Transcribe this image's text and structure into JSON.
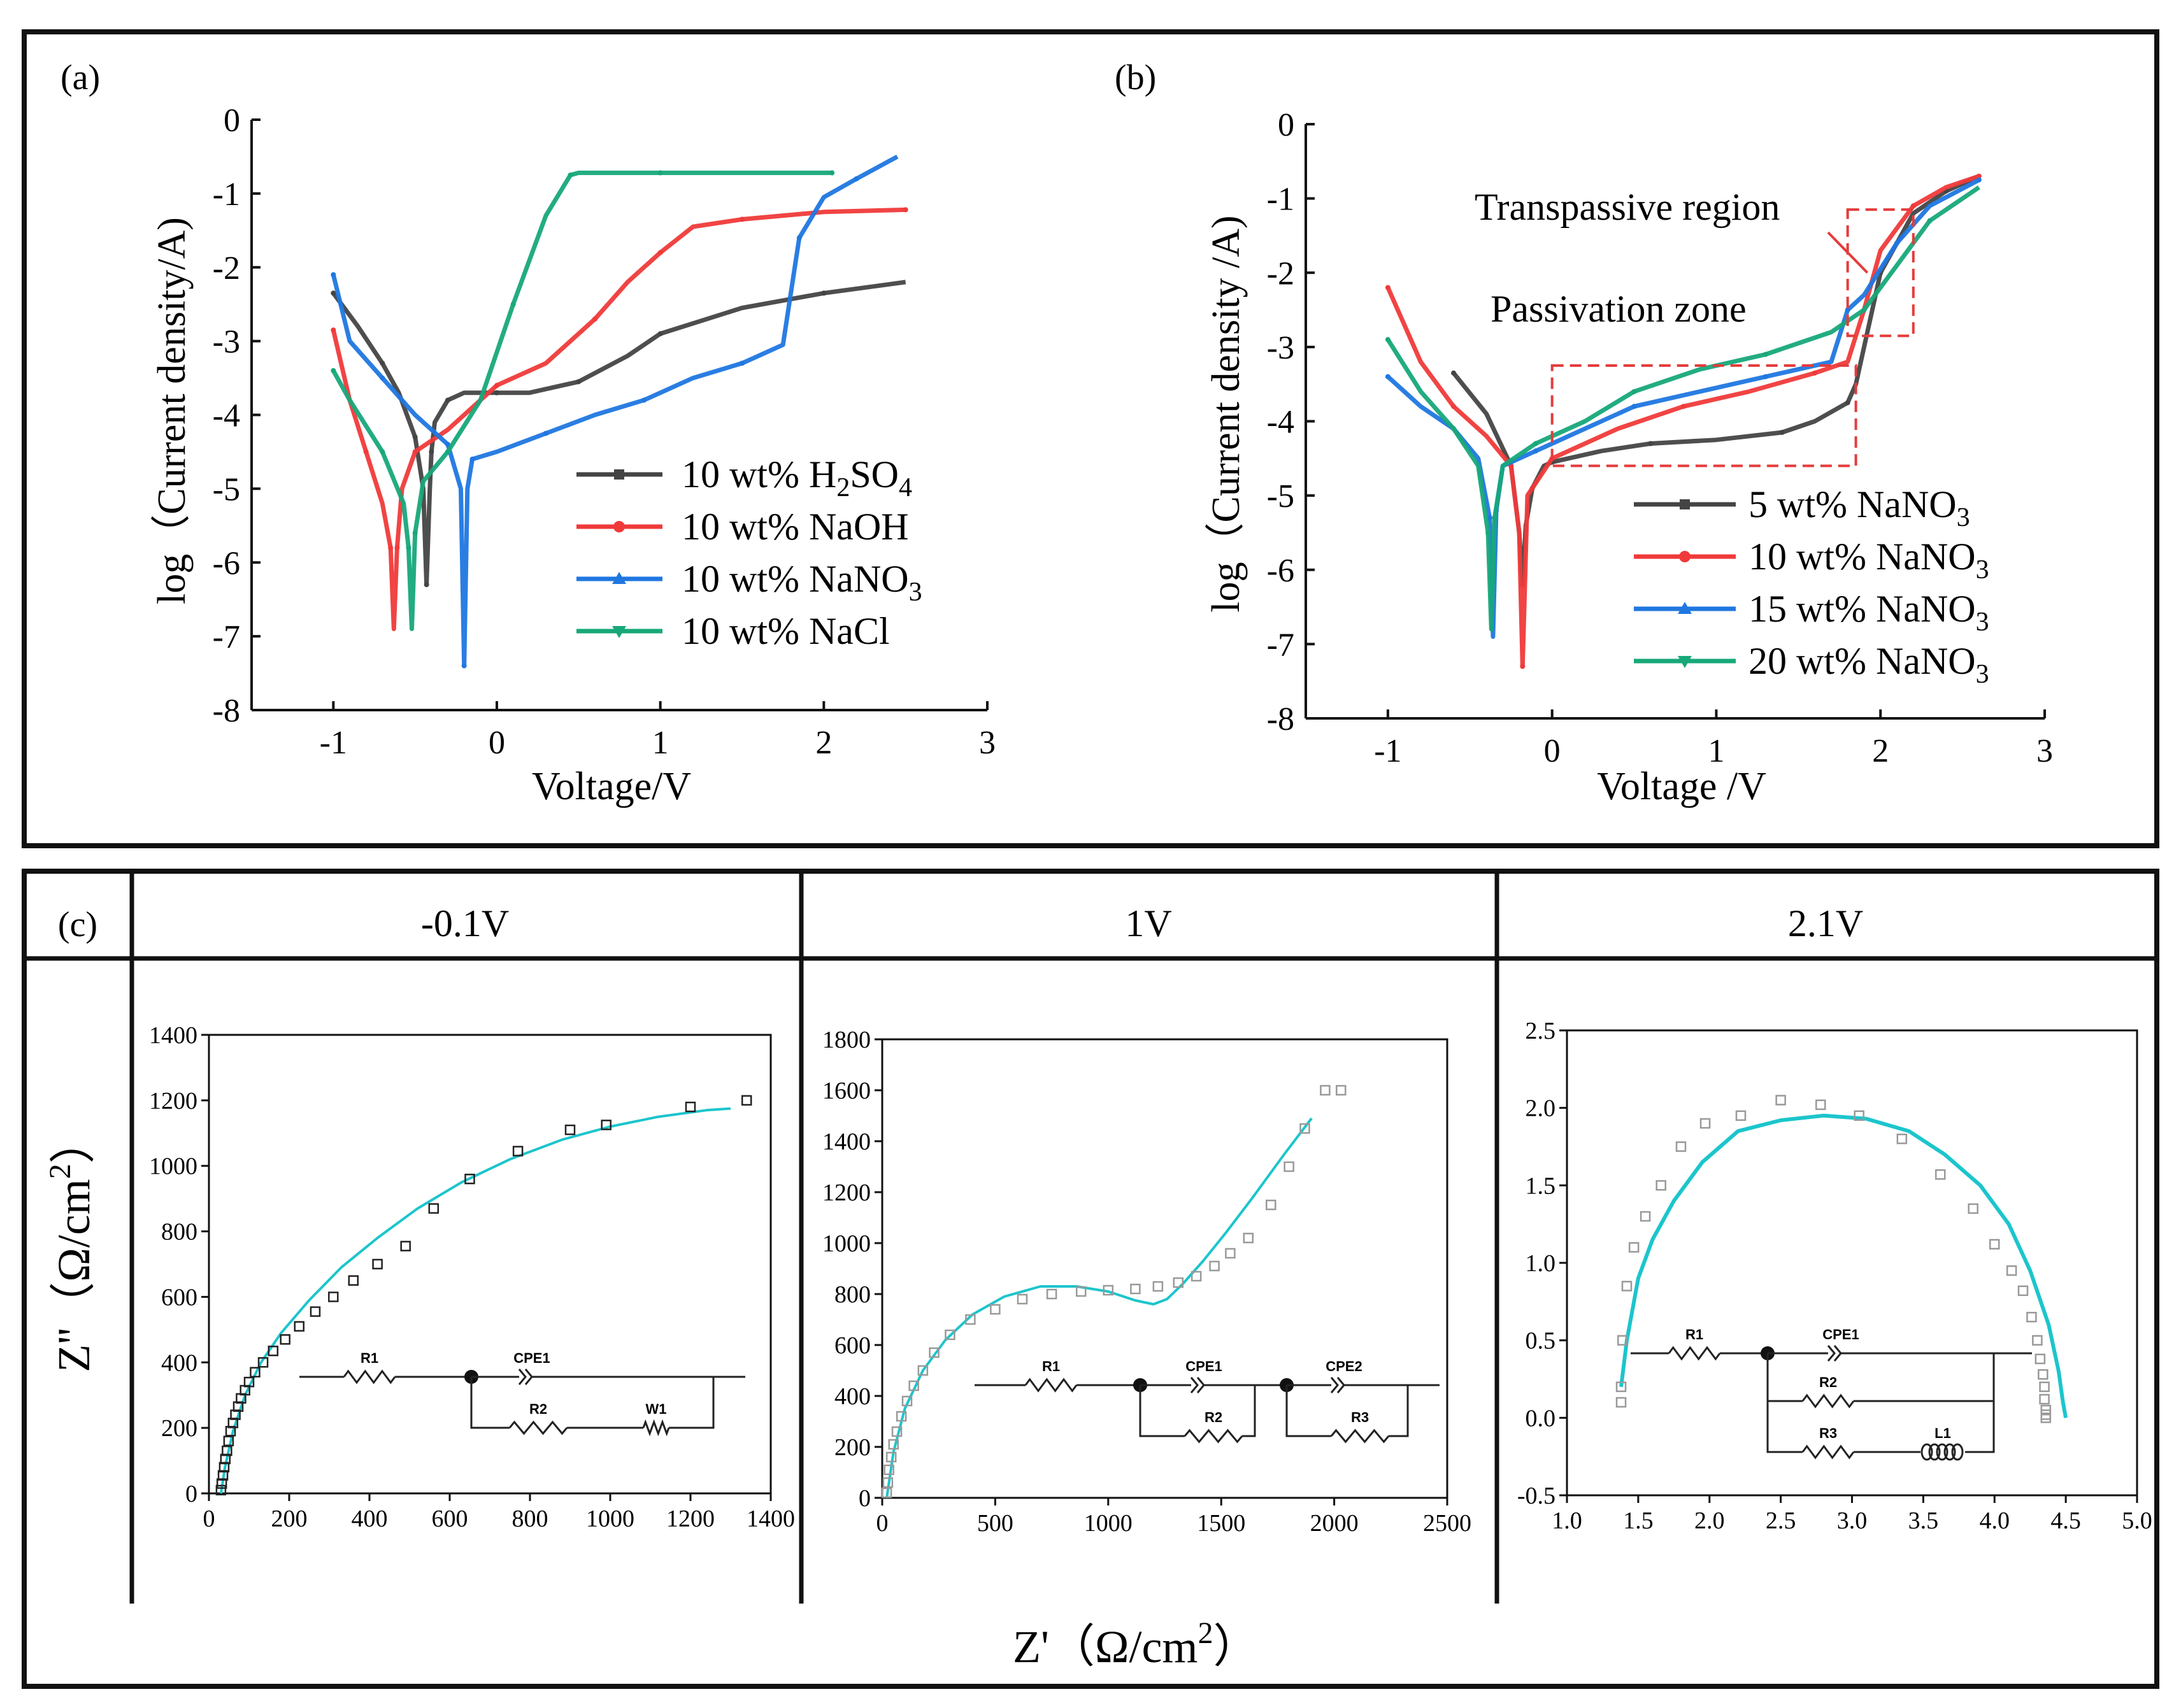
{
  "colors": {
    "black": "#444444",
    "red": "#f03a3a",
    "blue": "#1f77e0",
    "green": "#17a87a",
    "cyan": "#1cc5cc",
    "dashed": "#e53b3b"
  },
  "panel_a": {
    "label": "(a)",
    "chart_data": {
      "type": "line",
      "xlabel": "Voltage/V",
      "ylabel": "log（Current density/A)",
      "xlim": [
        -1.5,
        3
      ],
      "ylim": [
        -8,
        0
      ],
      "xticks": [
        "-1",
        "0",
        "1",
        "2",
        "3"
      ],
      "yticks": [
        "0",
        "-1",
        "-2",
        "-3",
        "-4",
        "-5",
        "-6",
        "-7",
        "-8"
      ],
      "legend_position": "bottom-right",
      "series": [
        {
          "name": "10 wt% H2SO4",
          "legend_main": "10 wt% H",
          "legend_tail": "SO",
          "sub1": "2",
          "sub2": "4",
          "color": "black",
          "x": [
            -1,
            -0.85,
            -0.7,
            -0.6,
            -0.5,
            -0.45,
            -0.43,
            -0.41,
            -0.4,
            -0.38,
            -0.3,
            -0.2,
            0,
            0.2,
            0.5,
            0.8,
            1,
            1.5,
            2,
            2.5
          ],
          "y": [
            -2.35,
            -2.8,
            -3.3,
            -3.7,
            -4.3,
            -5.0,
            -6.3,
            -5.0,
            -4.5,
            -4.1,
            -3.8,
            -3.7,
            -3.7,
            -3.7,
            -3.55,
            -3.2,
            -2.9,
            -2.55,
            -2.35,
            -2.2
          ]
        },
        {
          "name": "10 wt% NaOH",
          "legend_main": "10 wt% NaOH",
          "legend_tail": "",
          "sub1": "",
          "sub2": "",
          "color": "red",
          "x": [
            -1,
            -0.9,
            -0.8,
            -0.7,
            -0.65,
            -0.63,
            -0.61,
            -0.58,
            -0.5,
            -0.3,
            0,
            0.3,
            0.6,
            0.8,
            1,
            1.2,
            1.5,
            2,
            2.5
          ],
          "y": [
            -2.85,
            -3.8,
            -4.5,
            -5.2,
            -5.8,
            -6.9,
            -5.8,
            -5.0,
            -4.5,
            -4.2,
            -3.6,
            -3.3,
            -2.7,
            -2.2,
            -1.8,
            -1.45,
            -1.35,
            -1.25,
            -1.22
          ]
        },
        {
          "name": "10 wt% NaNO3",
          "legend_main": "10 wt% NaNO",
          "legend_tail": "",
          "sub1": "3",
          "sub2": "",
          "color": "blue",
          "x": [
            -1,
            -0.9,
            -0.7,
            -0.5,
            -0.3,
            -0.22,
            -0.2,
            -0.18,
            -0.15,
            0,
            0.3,
            0.6,
            0.9,
            1.2,
            1.5,
            1.75,
            1.85,
            2,
            2.2,
            2.45
          ],
          "y": [
            -2.1,
            -3.0,
            -3.5,
            -4.0,
            -4.4,
            -5.0,
            -7.4,
            -5.0,
            -4.6,
            -4.5,
            -4.25,
            -4.0,
            -3.8,
            -3.5,
            -3.3,
            -3.05,
            -1.6,
            -1.05,
            -0.8,
            -0.5
          ]
        },
        {
          "name": "10 wt% NaCl",
          "legend_main": "10 wt% NaCl",
          "legend_tail": "",
          "sub1": "",
          "sub2": "",
          "color": "green",
          "x": [
            -1,
            -0.9,
            -0.7,
            -0.57,
            -0.54,
            -0.52,
            -0.5,
            -0.45,
            -0.3,
            -0.1,
            0.1,
            0.3,
            0.45,
            0.5,
            1,
            1.5,
            2.05
          ],
          "y": [
            -3.4,
            -3.8,
            -4.5,
            -5.2,
            -5.8,
            -6.9,
            -5.6,
            -4.9,
            -4.5,
            -3.8,
            -2.5,
            -1.3,
            -0.75,
            -0.72,
            -0.72,
            -0.72,
            -0.72
          ]
        }
      ]
    }
  },
  "panel_b": {
    "label": "(b)",
    "chart_data": {
      "type": "line",
      "xlabel": "Voltage /V",
      "ylabel": "log（Current density /A)",
      "xlim": [
        -1.5,
        3
      ],
      "ylim": [
        -8,
        0
      ],
      "xticks": [
        "-1",
        "0",
        "1",
        "2",
        "3"
      ],
      "yticks": [
        "0",
        "-1",
        "-2",
        "-3",
        "-4",
        "-5",
        "-6",
        "-7",
        "-8"
      ],
      "legend_position": "bottom-right",
      "annotations": [
        "Transpassive region",
        "Passivation zone"
      ],
      "series": [
        {
          "name": "5 wt% NaNO3",
          "legend_main": "5 wt%   NaNO",
          "sub": "3",
          "color": "black",
          "x": [
            -0.6,
            -0.4,
            -0.25,
            -0.2,
            -0.18,
            -0.16,
            -0.12,
            -0.05,
            0,
            0.3,
            0.6,
            1,
            1.4,
            1.6,
            1.8,
            1.85,
            2,
            2.2,
            2.4,
            2.6
          ],
          "y": [
            -3.35,
            -3.9,
            -4.6,
            -5.5,
            -6.2,
            -5.4,
            -4.9,
            -4.6,
            -4.55,
            -4.4,
            -4.3,
            -4.25,
            -4.15,
            -4.0,
            -3.75,
            -3.5,
            -2.0,
            -1.2,
            -0.9,
            -0.7
          ]
        },
        {
          "name": "10 wt% NaNO3",
          "legend_main": "10 wt% NaNO",
          "sub": "3",
          "color": "red",
          "x": [
            -1,
            -0.8,
            -0.6,
            -0.4,
            -0.25,
            -0.2,
            -0.18,
            -0.15,
            0,
            0.4,
            0.8,
            1.2,
            1.6,
            1.8,
            1.9,
            2,
            2.2,
            2.4,
            2.6
          ],
          "y": [
            -2.2,
            -3.2,
            -3.8,
            -4.2,
            -4.6,
            -5.5,
            -7.3,
            -5.0,
            -4.5,
            -4.1,
            -3.8,
            -3.6,
            -3.35,
            -3.2,
            -2.5,
            -1.7,
            -1.1,
            -0.85,
            -0.7
          ]
        },
        {
          "name": "15 wt% NaNO3",
          "legend_main": "15 wt% NaNO",
          "sub": "3",
          "color": "blue",
          "x": [
            -1,
            -0.8,
            -0.6,
            -0.45,
            -0.38,
            -0.36,
            -0.34,
            -0.3,
            -0.1,
            0.2,
            0.5,
            0.9,
            1.3,
            1.7,
            1.8,
            1.9,
            2.1,
            2.3,
            2.6
          ],
          "y": [
            -3.4,
            -3.8,
            -4.1,
            -4.5,
            -5.3,
            -6.9,
            -5.2,
            -4.6,
            -4.4,
            -4.1,
            -3.8,
            -3.6,
            -3.4,
            -3.2,
            -2.5,
            -2.3,
            -1.6,
            -1.1,
            -0.75
          ]
        },
        {
          "name": "20 wt% NaNO3",
          "legend_main": "20 wt% NaNO",
          "sub": "3",
          "color": "green",
          "x": [
            -1,
            -0.8,
            -0.6,
            -0.45,
            -0.39,
            -0.37,
            -0.35,
            -0.3,
            -0.1,
            0.2,
            0.5,
            0.9,
            1.3,
            1.7,
            1.9,
            2.1,
            2.3,
            2.6
          ],
          "y": [
            -2.9,
            -3.6,
            -4.1,
            -4.6,
            -5.5,
            -6.8,
            -5.3,
            -4.6,
            -4.3,
            -4.0,
            -3.6,
            -3.3,
            -3.1,
            -2.8,
            -2.5,
            -1.9,
            -1.3,
            -0.85
          ]
        }
      ]
    }
  },
  "panel_c": {
    "label": "(c)",
    "xlabel_main": "Z'（Ω/cm",
    "xlabel_sup": "2",
    "xlabel_end": "）",
    "ylabel_main": "Z''（Ω/cm",
    "ylabel_sup": "2",
    "ylabel_end": "）",
    "columns": [
      "-0.1V",
      "1V",
      "2.1V"
    ],
    "plots": [
      {
        "title": "-0.1V",
        "xlim": [
          0,
          1400
        ],
        "ylim": [
          0,
          1400
        ],
        "xticks": [
          "0",
          "200",
          "400",
          "600",
          "800",
          "1000",
          "1200",
          "1400"
        ],
        "yticks": [
          "0",
          "200",
          "400",
          "600",
          "800",
          "1000",
          "1200",
          "1400"
        ],
        "circuit": [
          "R1",
          "CPE1",
          "R2",
          "W1"
        ],
        "measured_x": [
          30,
          32,
          35,
          38,
          41,
          45,
          49,
          54,
          60,
          66,
          73,
          80,
          90,
          100,
          115,
          135,
          160,
          190,
          225,
          265,
          310,
          360,
          420,
          490,
          560,
          650,
          770,
          900,
          990,
          1200,
          1340
        ],
        "measured_y": [
          10,
          30,
          55,
          80,
          105,
          130,
          160,
          190,
          215,
          240,
          265,
          290,
          315,
          340,
          370,
          400,
          435,
          470,
          510,
          555,
          600,
          650,
          700,
          755,
          870,
          960,
          1045,
          1110,
          1125,
          1180,
          1200
        ],
        "fit_x": [
          30,
          40,
          60,
          90,
          130,
          180,
          250,
          330,
          420,
          520,
          630,
          750,
          880,
          1000,
          1120,
          1240,
          1300
        ],
        "fit_y": [
          0,
          80,
          190,
          300,
          400,
          490,
          590,
          690,
          780,
          870,
          950,
          1020,
          1080,
          1120,
          1150,
          1170,
          1175
        ]
      },
      {
        "title": "1V",
        "xlim": [
          0,
          2500
        ],
        "ylim": [
          0,
          1800
        ],
        "xticks": [
          "0",
          "500",
          "1000",
          "1500",
          "2000",
          "2500"
        ],
        "yticks": [
          "0",
          "200",
          "400",
          "600",
          "800",
          "1000",
          "1200",
          "1400",
          "1600",
          "1800"
        ],
        "circuit": [
          "R1",
          "CPE1",
          "R2",
          "CPE2",
          "R3"
        ],
        "measured_x": [
          20,
          25,
          30,
          40,
          50,
          65,
          85,
          110,
          140,
          180,
          230,
          300,
          390,
          500,
          620,
          750,
          880,
          1000,
          1120,
          1220,
          1310,
          1390,
          1470,
          1540,
          1620,
          1720,
          1800,
          1870,
          1960,
          2030
        ],
        "measured_y": [
          20,
          60,
          110,
          160,
          210,
          260,
          320,
          380,
          440,
          500,
          570,
          640,
          700,
          740,
          780,
          800,
          810,
          815,
          820,
          830,
          845,
          870,
          910,
          960,
          1020,
          1150,
          1300,
          1450,
          1600,
          1600
        ],
        "fit_x": [
          20,
          50,
          100,
          180,
          280,
          400,
          540,
          700,
          860,
          1000,
          1120,
          1200,
          1260,
          1330,
          1420,
          1520,
          1640,
          1780,
          1900
        ],
        "fit_y": [
          0,
          180,
          350,
          500,
          620,
          720,
          790,
          830,
          830,
          810,
          775,
          760,
          780,
          840,
          930,
          1040,
          1180,
          1350,
          1490
        ]
      },
      {
        "title": "2.1V",
        "xlim": [
          1.0,
          5.0
        ],
        "ylim": [
          -0.5,
          2.5
        ],
        "xticks": [
          "1.0",
          "1.5",
          "2.0",
          "2.5",
          "3.0",
          "3.5",
          "4.0",
          "4.5",
          "5.0"
        ],
        "yticks": [
          "-0.5",
          "0.0",
          "0.5",
          "1.0",
          "1.5",
          "2.0",
          "2.5"
        ],
        "circuit": [
          "R1",
          "CPE1",
          "R2",
          "R3",
          "L1"
        ],
        "measured_x": [
          1.38,
          1.38,
          1.39,
          1.42,
          1.47,
          1.55,
          1.66,
          1.8,
          1.97,
          2.22,
          2.5,
          2.78,
          3.05,
          3.35,
          3.62,
          3.85,
          4.0,
          4.12,
          4.2,
          4.26,
          4.3,
          4.32,
          4.34,
          4.35,
          4.35,
          4.36,
          4.36,
          4.36
        ],
        "measured_y": [
          0.1,
          0.2,
          0.5,
          0.85,
          1.1,
          1.3,
          1.5,
          1.75,
          1.9,
          1.95,
          2.05,
          2.02,
          1.95,
          1.8,
          1.57,
          1.35,
          1.12,
          0.95,
          0.82,
          0.65,
          0.5,
          0.38,
          0.28,
          0.2,
          0.12,
          0.05,
          0.02,
          0.0
        ],
        "fit_x": [
          1.38,
          1.42,
          1.5,
          1.6,
          1.75,
          1.95,
          2.2,
          2.5,
          2.8,
          3.1,
          3.4,
          3.65,
          3.9,
          4.1,
          4.25,
          4.38,
          4.45,
          4.48,
          4.5
        ],
        "fit_y": [
          0.2,
          0.5,
          0.9,
          1.15,
          1.4,
          1.65,
          1.85,
          1.92,
          1.95,
          1.93,
          1.85,
          1.7,
          1.5,
          1.25,
          0.95,
          0.6,
          0.3,
          0.1,
          0.0
        ]
      }
    ]
  }
}
